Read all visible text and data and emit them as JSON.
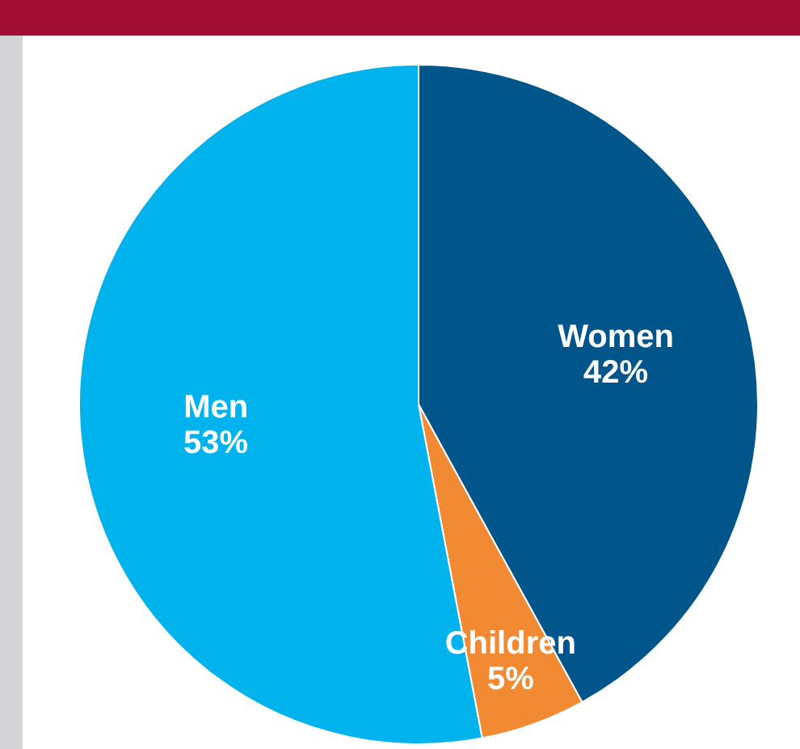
{
  "chart_data": {
    "type": "pie",
    "categories": [
      "Women",
      "Children",
      "Men"
    ],
    "values": [
      42,
      5,
      53
    ],
    "colors": [
      "#00558a",
      "#f18a32",
      "#00b3ec"
    ],
    "value_labels": [
      "42%",
      "5%",
      "53%"
    ]
  }
}
